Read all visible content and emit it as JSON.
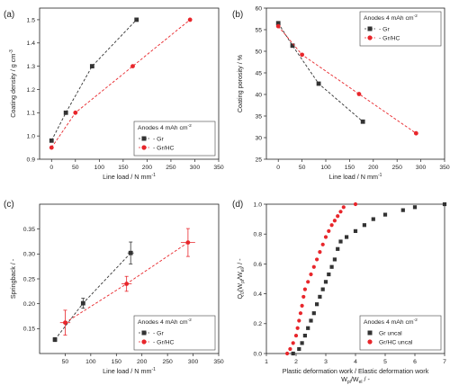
{
  "legend_title": "Anodes 4 mAh cm",
  "legend_title_sup": "-2",
  "chart_data": [
    {
      "panel": "(a)",
      "type": "scatter",
      "xlabel": "Line load / N mm",
      "xlabel_sup": "-1",
      "ylabel": "Coating density / g cm",
      "ylabel_sup": "-3",
      "xlim": [
        -25,
        350
      ],
      "ylim": [
        0.9,
        1.55
      ],
      "xticks": [
        0,
        50,
        100,
        150,
        200,
        250,
        300,
        350
      ],
      "yticks": [
        0.9,
        1.0,
        1.1,
        1.2,
        1.3,
        1.4,
        1.5
      ],
      "ytick_labels": [
        "0.9",
        "1.0",
        "1.1",
        "1.2",
        "1.3",
        "1.4",
        "1.5"
      ],
      "legend_position": "bottom-right",
      "series": [
        {
          "name": "Gr",
          "color": "#333333",
          "marker": "square",
          "dashed": true,
          "x": [
            0,
            30,
            85,
            178
          ],
          "y": [
            0.98,
            1.1,
            1.3,
            1.5
          ]
        },
        {
          "name": "Gr/HC",
          "color": "#e8262b",
          "marker": "circle",
          "dashed": true,
          "x": [
            0,
            50,
            170,
            290
          ],
          "y": [
            0.95,
            1.1,
            1.3,
            1.5
          ]
        }
      ]
    },
    {
      "panel": "(b)",
      "type": "scatter",
      "xlabel": "Line load / N mm",
      "xlabel_sup": "-1",
      "ylabel": "Coating porosity / %",
      "ylabel_sup": "",
      "xlim": [
        -25,
        350
      ],
      "ylim": [
        25,
        60
      ],
      "xticks": [
        0,
        50,
        100,
        150,
        200,
        250,
        300,
        350
      ],
      "yticks": [
        25,
        30,
        35,
        40,
        45,
        50,
        55,
        60
      ],
      "ytick_labels": [
        "25",
        "30",
        "35",
        "40",
        "45",
        "50",
        "55",
        "60"
      ],
      "legend_position": "top-right",
      "series": [
        {
          "name": "Gr",
          "color": "#333333",
          "marker": "square",
          "dashed": true,
          "x": [
            0,
            30,
            85,
            178
          ],
          "y": [
            56.5,
            51.3,
            42.5,
            33.7
          ]
        },
        {
          "name": "Gr/HC",
          "color": "#e8262b",
          "marker": "circle",
          "dashed": true,
          "x": [
            0,
            50,
            170,
            290
          ],
          "y": [
            55.8,
            49.2,
            40.1,
            31.0
          ]
        }
      ]
    },
    {
      "panel": "(c)",
      "type": "scatter",
      "xlabel": "Line load / N mm",
      "xlabel_sup": "-1",
      "ylabel": "Springback / -",
      "ylabel_sup": "",
      "xlim": [
        0,
        350
      ],
      "ylim": [
        0.1,
        0.4
      ],
      "xticks": [
        50,
        100,
        150,
        200,
        250,
        300,
        350
      ],
      "yticks": [
        0.15,
        0.2,
        0.25,
        0.3,
        0.35
      ],
      "ytick_labels": [
        "0.15",
        "0.20",
        "0.25",
        "0.30",
        "0.35"
      ],
      "legend_position": "bottom-right",
      "series": [
        {
          "name": "Gr",
          "color": "#333333",
          "marker": "square",
          "dashed": true,
          "x": [
            30,
            85,
            178
          ],
          "y": [
            0.128,
            0.201,
            0.302
          ],
          "yerr": [
            0.004,
            0.01,
            0.022
          ],
          "xerr": [
            0,
            4,
            6
          ]
        },
        {
          "name": "Gr/HC",
          "color": "#e8262b",
          "marker": "circle",
          "dashed": true,
          "x": [
            50,
            170,
            290
          ],
          "y": [
            0.162,
            0.24,
            0.323
          ],
          "yerr": [
            0.025,
            0.015,
            0.028
          ],
          "xerr": [
            10,
            10,
            14
          ]
        }
      ]
    },
    {
      "panel": "(d)",
      "type": "scatter",
      "xlabel": "Plastic deformation work / Elastic deformation work",
      "xlabel2": "W",
      "xlabel2_tail": "/W",
      "xlabel2_sub1": "pl",
      "xlabel2_sub2": "el",
      "xlabel2_end": " / -",
      "ylabel": "Q",
      "ylabel_sub": "0",
      "ylabel_mid": "(W",
      "ylabel_sub2": "pl",
      "ylabel_mid2": "/W",
      "ylabel_sub3": "el",
      "ylabel_end": ") / -",
      "xlim": [
        1,
        7
      ],
      "ylim": [
        0,
        1.0
      ],
      "xticks": [
        1,
        2,
        3,
        4,
        5,
        6,
        7
      ],
      "yticks": [
        0.0,
        0.2,
        0.4,
        0.6,
        0.8,
        1.0
      ],
      "ytick_labels": [
        "0.0",
        "0.2",
        "0.4",
        "0.6",
        "0.8",
        "1.0"
      ],
      "legend_position": "bottom-right",
      "series": [
        {
          "name": "Gr uncal",
          "color": "#333333",
          "marker": "square",
          "x": [
            1.9,
            2.1,
            2.2,
            2.3,
            2.4,
            2.5,
            2.6,
            2.7,
            2.8,
            2.9,
            3.0,
            3.1,
            3.2,
            3.3,
            3.4,
            3.5,
            3.7,
            4.0,
            4.3,
            4.6,
            5.0,
            5.6,
            6.0,
            7.0
          ],
          "y": [
            0.0,
            0.03,
            0.07,
            0.12,
            0.17,
            0.22,
            0.27,
            0.33,
            0.38,
            0.43,
            0.48,
            0.53,
            0.58,
            0.63,
            0.7,
            0.75,
            0.78,
            0.82,
            0.86,
            0.9,
            0.93,
            0.96,
            0.98,
            1.0
          ]
        },
        {
          "name": "Gr/HC uncal",
          "color": "#e8262b",
          "marker": "circle",
          "x": [
            1.7,
            1.8,
            1.9,
            2.0,
            2.05,
            2.1,
            2.15,
            2.2,
            2.25,
            2.3,
            2.4,
            2.5,
            2.6,
            2.7,
            2.8,
            2.9,
            3.0,
            3.1,
            3.2,
            3.3,
            3.4,
            3.5,
            3.6,
            4.0
          ],
          "y": [
            0.0,
            0.03,
            0.07,
            0.12,
            0.17,
            0.22,
            0.27,
            0.32,
            0.38,
            0.43,
            0.48,
            0.53,
            0.58,
            0.63,
            0.68,
            0.73,
            0.78,
            0.82,
            0.86,
            0.89,
            0.92,
            0.95,
            0.98,
            1.0
          ]
        }
      ]
    }
  ]
}
